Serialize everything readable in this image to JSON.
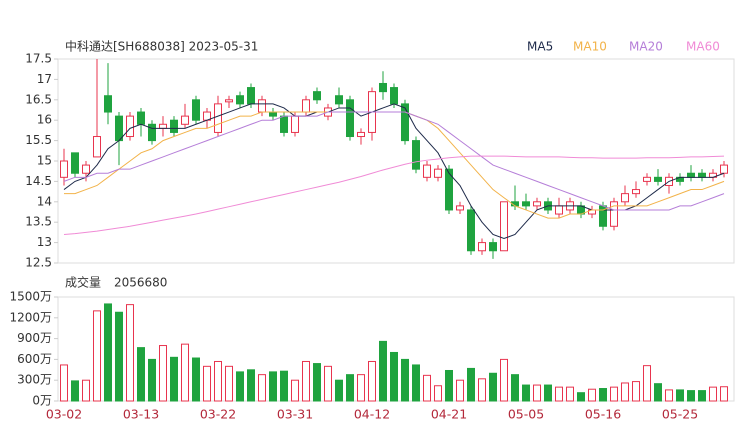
{
  "chart_data": {
    "type": "candlestick",
    "title": "中科通达[SH688038] 2023-05-31",
    "categories": [
      "03-02",
      null,
      null,
      null,
      null,
      null,
      null,
      "03-13",
      null,
      null,
      null,
      null,
      null,
      null,
      "03-22",
      null,
      null,
      null,
      null,
      null,
      null,
      "03-31",
      null,
      null,
      null,
      null,
      null,
      null,
      "04-12",
      null,
      null,
      null,
      null,
      null,
      null,
      "04-21",
      null,
      null,
      null,
      null,
      null,
      null,
      "05-05",
      null,
      null,
      null,
      null,
      null,
      null,
      "05-16",
      null,
      null,
      null,
      null,
      null,
      null,
      "05-25",
      null,
      null,
      null,
      null
    ],
    "open": [
      14.6,
      15.2,
      14.7,
      15.1,
      16.6,
      16.1,
      15.6,
      16.2,
      15.9,
      15.8,
      16.0,
      15.9,
      16.5,
      16.0,
      15.7,
      16.45,
      16.6,
      16.8,
      16.2,
      16.2,
      16.1,
      15.7,
      16.2,
      16.7,
      16.1,
      16.6,
      16.5,
      15.6,
      15.7,
      16.9,
      16.8,
      16.4,
      15.5,
      14.6,
      14.6,
      14.8,
      13.8,
      13.8,
      12.8,
      13.0,
      12.8,
      14.0,
      14.0,
      13.9,
      14.0,
      13.7,
      13.8,
      13.9,
      13.7,
      13.9,
      13.4,
      14.0,
      14.2,
      14.5,
      14.6,
      14.4,
      14.6,
      14.7,
      14.7,
      14.6,
      14.7
    ],
    "high": [
      15.3,
      15.2,
      15.0,
      17.5,
      17.4,
      16.2,
      16.2,
      16.3,
      16.0,
      16.1,
      16.1,
      16.4,
      16.6,
      16.3,
      16.6,
      16.6,
      16.7,
      16.9,
      16.6,
      16.3,
      16.2,
      16.2,
      16.6,
      16.8,
      16.4,
      16.8,
      16.6,
      15.8,
      16.8,
      17.2,
      16.9,
      16.5,
      15.6,
      15.0,
      14.9,
      14.9,
      14.0,
      13.9,
      13.1,
      13.1,
      14.0,
      14.4,
      14.2,
      14.1,
      14.1,
      14.1,
      14.1,
      14.0,
      13.9,
      14.0,
      14.1,
      14.4,
      14.5,
      14.7,
      14.8,
      14.7,
      14.7,
      14.9,
      14.8,
      14.8,
      15.0
    ],
    "low": [
      14.4,
      14.6,
      14.5,
      15.1,
      15.9,
      14.9,
      15.5,
      15.6,
      15.4,
      15.6,
      15.6,
      15.8,
      15.9,
      15.8,
      15.6,
      16.3,
      16.3,
      16.3,
      16.1,
      16.0,
      15.6,
      15.6,
      16.1,
      16.4,
      16.0,
      16.3,
      15.5,
      15.4,
      15.5,
      16.5,
      16.3,
      15.4,
      14.7,
      14.5,
      14.5,
      13.7,
      13.7,
      12.7,
      12.7,
      12.6,
      12.8,
      13.8,
      13.8,
      13.8,
      13.7,
      13.6,
      13.7,
      13.6,
      13.6,
      13.3,
      13.3,
      13.9,
      14.1,
      14.4,
      14.4,
      14.2,
      14.4,
      14.5,
      14.5,
      14.5,
      14.6
    ],
    "close": [
      15.0,
      14.7,
      14.9,
      15.6,
      16.2,
      15.5,
      16.1,
      15.9,
      15.5,
      15.9,
      15.7,
      16.1,
      16.0,
      16.2,
      16.4,
      16.5,
      16.4,
      16.4,
      16.5,
      16.1,
      15.7,
      16.1,
      16.5,
      16.5,
      16.3,
      16.4,
      15.6,
      15.7,
      16.7,
      16.7,
      16.4,
      15.5,
      14.8,
      14.9,
      14.8,
      13.8,
      13.9,
      12.8,
      13.0,
      12.8,
      14.0,
      13.9,
      13.9,
      14.0,
      13.8,
      13.9,
      14.0,
      13.7,
      13.8,
      13.4,
      14.0,
      14.2,
      14.3,
      14.6,
      14.5,
      14.6,
      14.5,
      14.6,
      14.6,
      14.7,
      14.9
    ],
    "up_color": "#e8344e",
    "down_color": "#1fa33f",
    "series": [
      {
        "name": "MA5",
        "color": "#1e2a4a",
        "values": [
          14.3,
          14.5,
          14.6,
          14.9,
          15.3,
          15.5,
          15.8,
          15.9,
          15.8,
          15.8,
          15.8,
          15.8,
          15.9,
          16.0,
          16.1,
          16.2,
          16.3,
          16.4,
          16.4,
          16.4,
          16.3,
          16.1,
          16.1,
          16.2,
          16.2,
          16.3,
          16.3,
          16.1,
          16.2,
          16.3,
          16.4,
          16.3,
          15.8,
          15.5,
          15.2,
          14.7,
          14.4,
          13.9,
          13.5,
          13.2,
          13.1,
          13.2,
          13.5,
          13.8,
          13.9,
          13.9,
          13.9,
          13.9,
          13.8,
          13.8,
          13.8,
          13.8,
          13.9,
          14.1,
          14.3,
          14.5,
          14.6,
          14.6,
          14.6,
          14.6,
          14.7
        ]
      },
      {
        "name": "MA10",
        "color": "#f2b34a",
        "values": [
          14.2,
          14.2,
          14.3,
          14.4,
          14.6,
          14.8,
          15.0,
          15.2,
          15.3,
          15.5,
          15.6,
          15.7,
          15.8,
          15.8,
          15.9,
          16.0,
          16.1,
          16.1,
          16.2,
          16.2,
          16.2,
          16.2,
          16.2,
          16.2,
          16.2,
          16.2,
          16.2,
          16.2,
          16.2,
          16.2,
          16.2,
          16.2,
          16.1,
          16.0,
          15.8,
          15.5,
          15.2,
          14.9,
          14.6,
          14.3,
          14.1,
          13.9,
          13.8,
          13.7,
          13.6,
          13.6,
          13.7,
          13.7,
          13.8,
          13.8,
          13.9,
          13.9,
          13.9,
          13.9,
          14.0,
          14.1,
          14.2,
          14.3,
          14.3,
          14.4,
          14.5
        ]
      },
      {
        "name": "MA20",
        "color": "#b57ed8",
        "values": [
          14.5,
          14.6,
          14.6,
          14.7,
          14.7,
          14.8,
          14.8,
          14.9,
          15.0,
          15.1,
          15.2,
          15.3,
          15.4,
          15.5,
          15.6,
          15.7,
          15.8,
          15.9,
          16.0,
          16.0,
          16.1,
          16.1,
          16.1,
          16.1,
          16.2,
          16.2,
          16.2,
          16.2,
          16.2,
          16.2,
          16.2,
          16.2,
          16.1,
          16.0,
          15.9,
          15.7,
          15.5,
          15.3,
          15.1,
          14.9,
          14.8,
          14.7,
          14.6,
          14.5,
          14.4,
          14.3,
          14.2,
          14.1,
          14.0,
          13.9,
          13.8,
          13.8,
          13.8,
          13.8,
          13.8,
          13.8,
          13.9,
          13.9,
          14.0,
          14.1,
          14.2
        ]
      },
      {
        "name": "MA60",
        "color": "#f08bd6",
        "values": [
          13.2,
          13.22,
          13.25,
          13.28,
          13.32,
          13.36,
          13.4,
          13.45,
          13.5,
          13.55,
          13.6,
          13.65,
          13.7,
          13.76,
          13.82,
          13.88,
          13.94,
          14.0,
          14.06,
          14.12,
          14.18,
          14.24,
          14.3,
          14.36,
          14.42,
          14.48,
          14.55,
          14.62,
          14.7,
          14.78,
          14.85,
          14.92,
          14.98,
          15.02,
          15.05,
          15.08,
          15.1,
          15.12,
          15.12,
          15.12,
          15.12,
          15.11,
          15.1,
          15.1,
          15.1,
          15.1,
          15.09,
          15.08,
          15.08,
          15.07,
          15.07,
          15.07,
          15.07,
          15.08,
          15.08,
          15.08,
          15.09,
          15.1,
          15.1,
          15.11,
          15.12
        ]
      }
    ],
    "ylim": [
      12.5,
      17.5
    ],
    "yticks": [
      12.5,
      13,
      13.5,
      14,
      14.5,
      15,
      15.5,
      16,
      16.5,
      17,
      17.5
    ],
    "volume_label": "成交量",
    "volume_latest": 2056680,
    "volume": [
      520,
      290,
      300,
      1300,
      1400,
      1280,
      1390,
      770,
      600,
      800,
      630,
      820,
      620,
      500,
      570,
      500,
      420,
      450,
      380,
      420,
      430,
      300,
      570,
      540,
      500,
      300,
      380,
      380,
      570,
      860,
      700,
      600,
      520,
      370,
      220,
      440,
      300,
      470,
      320,
      400,
      600,
      380,
      230,
      230,
      230,
      200,
      200,
      120,
      170,
      180,
      200,
      260,
      280,
      510,
      250,
      160,
      160,
      150,
      150,
      200,
      205.668
    ],
    "vlim": [
      0,
      1500
    ],
    "vticks": [
      {
        "value": 0,
        "label": "0万"
      },
      {
        "value": 300,
        "label": "300万"
      },
      {
        "value": 600,
        "label": "600万"
      },
      {
        "value": 900,
        "label": "900万"
      },
      {
        "value": 1200,
        "label": "1200万"
      },
      {
        "value": 1500,
        "label": "1500万"
      }
    ]
  }
}
